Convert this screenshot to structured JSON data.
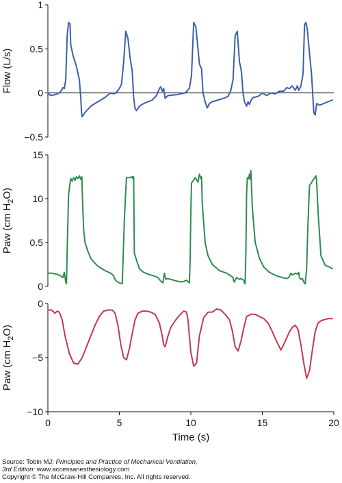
{
  "chart_data": [
    {
      "type": "line",
      "ylabel": "Flow (L/s)",
      "ylim": [
        -0.5,
        1
      ],
      "yticks": [
        "1",
        "0.5",
        "0",
        "−0.5"
      ],
      "xlim": [
        0,
        20
      ],
      "zero_line": true,
      "color": "#3b5ea8",
      "series": [
        {
          "x": [
            0,
            0.2,
            0.5,
            0.8,
            0.95,
            1.05,
            1.15,
            1.25,
            1.35,
            1.45,
            1.55,
            1.6,
            1.75,
            2.0,
            2.2,
            2.3,
            2.35,
            2.4,
            2.6,
            3.0,
            3.5,
            4.0,
            4.3,
            4.45,
            4.6,
            4.75,
            5.0,
            5.15,
            5.3,
            5.45,
            5.6,
            5.75,
            5.9,
            6.0,
            6.1,
            6.2,
            6.4,
            6.7,
            7.0,
            7.3,
            7.6,
            7.8,
            7.9,
            8.0,
            8.1,
            8.2,
            8.4,
            9.0,
            9.6,
            9.9,
            10.05,
            10.2,
            10.35,
            10.5,
            10.6,
            10.75,
            10.85,
            11.0,
            11.15,
            11.3,
            11.5,
            11.9,
            12.3,
            12.6,
            12.8,
            12.95,
            13.1,
            13.25,
            13.4,
            13.5,
            13.55,
            13.65,
            13.75,
            13.9,
            14.0,
            14.1,
            14.25,
            14.4,
            14.7,
            15.0,
            15.3,
            15.6,
            15.9,
            16.2,
            16.5,
            16.7,
            16.9,
            17.1,
            17.3,
            17.45,
            17.55,
            17.7,
            17.85,
            17.95,
            18.05,
            18.15,
            18.3,
            18.45,
            18.6,
            18.7,
            18.8,
            19.0,
            19.3,
            19.6,
            19.9
          ],
          "y": [
            0,
            -0.03,
            -0.02,
            0.0,
            0.03,
            0.06,
            0.05,
            0.15,
            0.65,
            0.8,
            0.78,
            0.55,
            0.43,
            0.3,
            0.15,
            -0.05,
            -0.22,
            -0.27,
            -0.22,
            -0.15,
            -0.1,
            -0.05,
            -0.01,
            0.0,
            -0.01,
            0.0,
            0.05,
            0.1,
            0.35,
            0.7,
            0.62,
            0.4,
            0.25,
            -0.05,
            -0.18,
            -0.2,
            -0.15,
            -0.12,
            -0.1,
            -0.08,
            -0.03,
            0.05,
            0.07,
            0.02,
            0.05,
            -0.06,
            -0.03,
            -0.02,
            0.0,
            0.05,
            0.2,
            0.8,
            0.75,
            0.5,
            0.33,
            0.27,
            0.0,
            -0.1,
            -0.17,
            -0.12,
            -0.1,
            -0.08,
            -0.06,
            -0.04,
            0.03,
            0.15,
            0.65,
            0.7,
            0.35,
            0.28,
            0.22,
            0.0,
            -0.1,
            -0.15,
            -0.1,
            -0.13,
            -0.07,
            -0.05,
            -0.04,
            0.0,
            -0.03,
            0.0,
            -0.01,
            0.02,
            0.02,
            0.06,
            0.05,
            0.08,
            0.03,
            0.08,
            0.03,
            0.08,
            0.22,
            0.77,
            0.8,
            0.72,
            0.45,
            0.2,
            -0.22,
            -0.25,
            -0.12,
            -0.14,
            -0.12,
            -0.1,
            -0.08
          ]
        }
      ]
    },
    {
      "type": "line",
      "ylabel": "Paw (cm H2O)",
      "ylabel_main": "Paw (cm H",
      "ylabel_sub": "2",
      "ylabel_tail": "O)",
      "ylim": [
        0,
        15
      ],
      "yticks": [
        "15",
        "10",
        "0.5",
        "0"
      ],
      "xlim": [
        0,
        20
      ],
      "color": "#2e8b4e",
      "series": [
        {
          "x": [
            0,
            0.3,
            0.6,
            0.9,
            1.05,
            1.15,
            1.25,
            1.3,
            1.35,
            1.45,
            1.6,
            1.7,
            1.8,
            1.9,
            2.0,
            2.1,
            2.2,
            2.3,
            2.38,
            2.42,
            2.5,
            2.6,
            2.8,
            3.0,
            3.2,
            3.5,
            4.0,
            4.4,
            4.6,
            4.7,
            4.8,
            5.0,
            5.2,
            5.25,
            5.35,
            5.45,
            5.5,
            5.7,
            5.9,
            5.95,
            6.0,
            6.05,
            6.2,
            6.4,
            6.7,
            7.0,
            7.4,
            7.7,
            7.9,
            8.05,
            8.15,
            8.25,
            8.35,
            8.6,
            9.0,
            9.4,
            9.7,
            9.9,
            9.95,
            10.0,
            10.05,
            10.15,
            10.3,
            10.5,
            10.6,
            10.7,
            10.75,
            10.8,
            11.0,
            11.2,
            11.5,
            12.0,
            12.5,
            12.8,
            12.95,
            13.0,
            13.05,
            13.1,
            13.2,
            13.4,
            13.5,
            13.6,
            13.7,
            13.75,
            13.8,
            13.85,
            13.9,
            13.95,
            14.05,
            14.1,
            14.15,
            14.2,
            14.3,
            14.5,
            14.8,
            15.1,
            15.5,
            16.0,
            16.4,
            16.7,
            16.85,
            17.0,
            17.1,
            17.2,
            17.3,
            17.45,
            17.55,
            17.6,
            17.7,
            17.8,
            17.9,
            18.0,
            18.1,
            18.2,
            18.3,
            18.5,
            18.75,
            18.8,
            18.9,
            19.1,
            19.4,
            19.7,
            19.9
          ],
          "y": [
            1.5,
            1.5,
            1.4,
            1.2,
            1.0,
            1.6,
            0.5,
            0.3,
            4.0,
            10.5,
            12.3,
            12.0,
            12.4,
            12.1,
            12.5,
            12.3,
            12.6,
            12.2,
            12.5,
            10.0,
            6.5,
            5.0,
            4.0,
            3.2,
            2.8,
            2.3,
            1.8,
            1.5,
            1.2,
            0.8,
            0.6,
            0.4,
            0.3,
            2.5,
            7.5,
            11.0,
            12.4,
            12.4,
            12.5,
            12.3,
            12.5,
            3.8,
            3.0,
            2.0,
            1.6,
            1.4,
            1.2,
            1.0,
            0.6,
            0.4,
            1.5,
            0.8,
            0.9,
            0.8,
            0.6,
            0.5,
            0.7,
            0.4,
            3.0,
            8.5,
            11.8,
            12.0,
            12.4,
            11.9,
            12.8,
            12.3,
            12.5,
            9.5,
            5.0,
            3.5,
            2.5,
            1.8,
            1.5,
            1.2,
            1.0,
            0.6,
            0.5,
            0.7,
            1.0,
            0.8,
            0.9,
            0.8,
            0.7,
            0.4,
            0.3,
            4.0,
            10.5,
            12.4,
            12.3,
            12.8,
            12.2,
            13.2,
            9.0,
            5.0,
            3.2,
            2.2,
            1.6,
            1.2,
            1.0,
            0.9,
            1.0,
            1.5,
            1.3,
            1.4,
            1.5,
            1.4,
            1.6,
            1.0,
            0.8,
            0.9,
            0.5,
            0.3,
            2.0,
            7.5,
            11.5,
            12.0,
            12.6,
            12.0,
            8.5,
            3.5,
            2.4,
            2.2,
            2.0
          ]
        }
      ]
    },
    {
      "type": "line",
      "ylabel": "Paw (cm H2O)",
      "ylabel_main": "Paw (cm H",
      "ylabel_sub": "2",
      "ylabel_tail": "O)",
      "ylim": [
        -10,
        0
      ],
      "yticks": [
        "0",
        "−5",
        "−10"
      ],
      "xlim": [
        0,
        20
      ],
      "xticks": [
        "0",
        "5",
        "10",
        "15",
        "20"
      ],
      "xlabel": "Time (s)",
      "color": "#c0394f",
      "series": [
        {
          "x": [
            0,
            0.25,
            0.5,
            0.65,
            0.8,
            1.0,
            1.2,
            1.5,
            1.8,
            2.1,
            2.4,
            2.7,
            3.0,
            3.3,
            3.6,
            3.9,
            4.2,
            4.5,
            4.7,
            4.9,
            5.1,
            5.3,
            5.5,
            5.7,
            5.9,
            6.1,
            6.3,
            6.6,
            6.9,
            7.2,
            7.5,
            7.8,
            8.0,
            8.1,
            8.2,
            8.4,
            8.6,
            8.9,
            9.2,
            9.5,
            9.7,
            9.8,
            9.9,
            10.0,
            10.2,
            10.4,
            10.6,
            10.9,
            11.2,
            11.5,
            11.8,
            12.1,
            12.4,
            12.7,
            12.9,
            13.1,
            13.3,
            13.5,
            13.7,
            13.9,
            14.2,
            14.5,
            14.8,
            15.1,
            15.4,
            15.7,
            16.0,
            16.3,
            16.5,
            16.7,
            16.9,
            17.1,
            17.3,
            17.5,
            17.7,
            17.9,
            18.1,
            18.3,
            18.5,
            18.7,
            18.9,
            19.1,
            19.3,
            19.6,
            19.9
          ],
          "y": [
            -0.6,
            -0.6,
            -0.9,
            -0.7,
            -0.8,
            -1.5,
            -3.0,
            -4.6,
            -5.5,
            -5.6,
            -5.0,
            -4.0,
            -3.0,
            -2.0,
            -1.2,
            -0.7,
            -0.6,
            -0.6,
            -0.9,
            -2.0,
            -3.8,
            -5.0,
            -5.2,
            -4.2,
            -2.8,
            -1.5,
            -0.9,
            -0.7,
            -0.7,
            -0.8,
            -1.0,
            -1.8,
            -3.0,
            -3.8,
            -4.0,
            -3.0,
            -2.2,
            -1.6,
            -1.1,
            -0.7,
            -0.8,
            -1.5,
            -3.0,
            -4.5,
            -5.8,
            -5.5,
            -3.0,
            -1.3,
            -0.8,
            -0.8,
            -0.5,
            -0.6,
            -1.0,
            -1.5,
            -2.5,
            -4.0,
            -4.4,
            -3.5,
            -2.3,
            -1.2,
            -1.0,
            -1.0,
            -1.2,
            -1.4,
            -1.8,
            -2.6,
            -3.5,
            -4.3,
            -3.8,
            -3.2,
            -2.6,
            -2.2,
            -2.0,
            -2.4,
            -3.8,
            -5.5,
            -6.9,
            -6.2,
            -4.3,
            -2.6,
            -1.8,
            -1.6,
            -1.5,
            -1.4,
            -1.4
          ]
        }
      ]
    }
  ],
  "source": {
    "line1_prefix": "Source: Tobin MJ: ",
    "line1_italic": "Principles and Practice of Mechanical Ventilation,",
    "line2_italic": "3rd Edition: ",
    "line2_rest": "www.accessanesthesiology.com",
    "line3": "Copyright © The McGraw-Hill Companies, Inc. All rights reserved."
  }
}
